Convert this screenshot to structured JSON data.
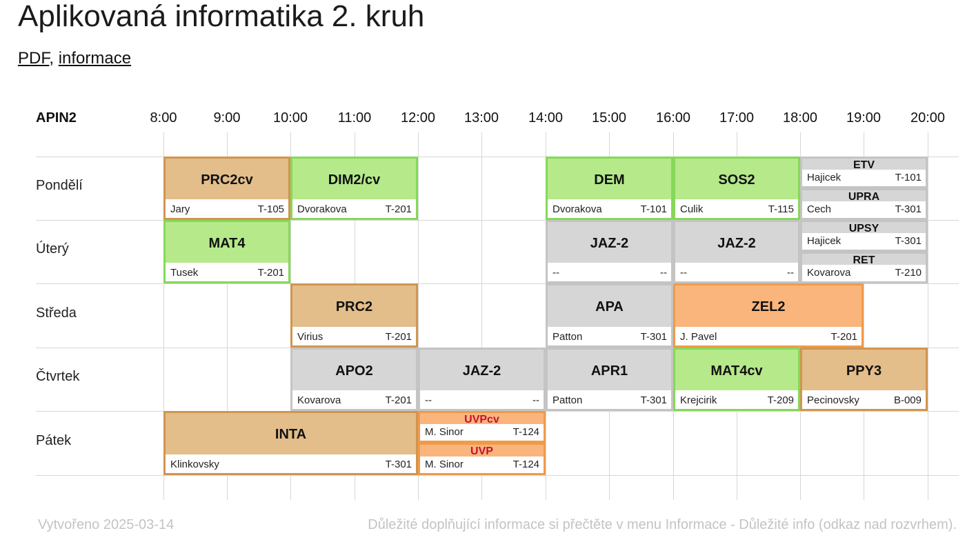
{
  "page": {
    "title": "Aplikovaná informatika 2. kruh",
    "link_pdf": "PDF",
    "link_sep": ",",
    "link_info": "informace"
  },
  "header": {
    "group": "APIN2",
    "hours": [
      "8:00",
      "9:00",
      "10:00",
      "11:00",
      "12:00",
      "13:00",
      "14:00",
      "15:00",
      "16:00",
      "17:00",
      "18:00",
      "19:00",
      "20:00"
    ]
  },
  "days": [
    "Pondělí",
    "Úterý",
    "Středa",
    "Čtvrtek",
    "Pátek"
  ],
  "events": [
    {
      "code": "PRC2cv",
      "teacher": "Jary",
      "room": "T-105",
      "color": "tan"
    },
    {
      "code": "DIM2/cv",
      "teacher": "Dvorakova",
      "room": "T-201",
      "color": "green"
    },
    {
      "code": "DEM",
      "teacher": "Dvorakova",
      "room": "T-101",
      "color": "green"
    },
    {
      "code": "SOS2",
      "teacher": "Culik",
      "room": "T-115",
      "color": "green"
    },
    {
      "code": "ETV",
      "teacher": "Hajicek",
      "room": "T-101",
      "color": "gray"
    },
    {
      "code": "UPRA",
      "teacher": "Cech",
      "room": "T-301",
      "color": "gray"
    },
    {
      "code": "MAT4",
      "teacher": "Tusek",
      "room": "T-201",
      "color": "green"
    },
    {
      "code": "JAZ-2",
      "teacher": "--",
      "room": "--",
      "color": "gray"
    },
    {
      "code": "JAZ-2",
      "teacher": "--",
      "room": "--",
      "color": "gray"
    },
    {
      "code": "UPSY",
      "teacher": "Hajicek",
      "room": "T-301",
      "color": "gray"
    },
    {
      "code": "RET",
      "teacher": "Kovarova",
      "room": "T-210",
      "color": "gray"
    },
    {
      "code": "PRC2",
      "teacher": "Virius",
      "room": "T-201",
      "color": "tan"
    },
    {
      "code": "APA",
      "teacher": "Patton",
      "room": "T-301",
      "color": "gray"
    },
    {
      "code": "ZEL2",
      "teacher": "J. Pavel",
      "room": "T-201",
      "color": "orange"
    },
    {
      "code": "APO2",
      "teacher": "Kovarova",
      "room": "T-201",
      "color": "gray"
    },
    {
      "code": "JAZ-2",
      "teacher": "--",
      "room": "--",
      "color": "gray"
    },
    {
      "code": "APR1",
      "teacher": "Patton",
      "room": "T-301",
      "color": "gray"
    },
    {
      "code": "MAT4cv",
      "teacher": "Krejcirik",
      "room": "T-209",
      "color": "green"
    },
    {
      "code": "PPY3",
      "teacher": "Pecinovsky",
      "room": "B-009",
      "color": "tan"
    },
    {
      "code": "INTA",
      "teacher": "Klinkovsky",
      "room": "T-301",
      "color": "tan"
    },
    {
      "code": "UVPcv",
      "teacher": "M. Sinor",
      "room": "T-124",
      "color": "orange",
      "label_color": "#c8102e"
    },
    {
      "code": "UVP",
      "teacher": "M. Sinor",
      "room": "T-124",
      "color": "orange",
      "label_color": "#c8102e"
    }
  ],
  "footer": {
    "created": "Vytvořeno 2025-03-14",
    "note": "Důležité doplňující informace si přečtěte v menu Informace - Důležité info (odkaz nad rozvrhem)."
  }
}
